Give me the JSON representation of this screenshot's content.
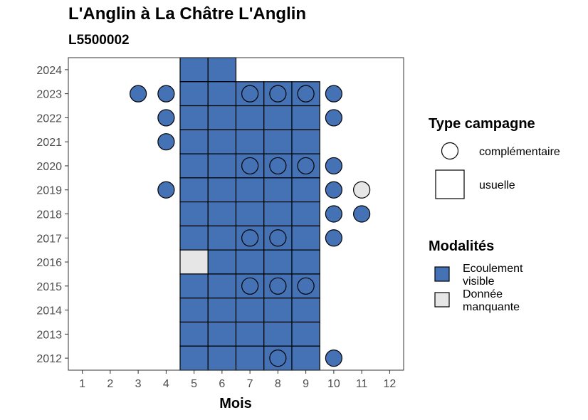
{
  "chart_data": {
    "type": "heatmap",
    "title": "L'Anglin à La Châtre L'Anglin",
    "subtitle": "L5500002",
    "xlabel": "Mois",
    "ylabel": "",
    "x_ticks": [
      1,
      2,
      3,
      4,
      5,
      6,
      7,
      8,
      9,
      10,
      11,
      12
    ],
    "y_ticks": [
      2012,
      2013,
      2014,
      2015,
      2016,
      2017,
      2018,
      2019,
      2020,
      2021,
      2022,
      2023,
      2024
    ],
    "xlim": [
      0.5,
      12.5
    ],
    "ylim": [
      2011.5,
      2024.5
    ],
    "colors": {
      "Ecoulement visible": "#4472b4",
      "Donnée manquante": "#e6e6e6"
    },
    "usuelle": [
      {
        "year": 2024,
        "month": 5,
        "modalite": "Ecoulement visible"
      },
      {
        "year": 2024,
        "month": 6,
        "modalite": "Ecoulement visible"
      },
      {
        "year": 2023,
        "month": 5,
        "modalite": "Ecoulement visible"
      },
      {
        "year": 2023,
        "month": 6,
        "modalite": "Ecoulement visible"
      },
      {
        "year": 2023,
        "month": 7,
        "modalite": "Ecoulement visible"
      },
      {
        "year": 2023,
        "month": 8,
        "modalite": "Ecoulement visible"
      },
      {
        "year": 2023,
        "month": 9,
        "modalite": "Ecoulement visible"
      },
      {
        "year": 2022,
        "month": 5,
        "modalite": "Ecoulement visible"
      },
      {
        "year": 2022,
        "month": 6,
        "modalite": "Ecoulement visible"
      },
      {
        "year": 2022,
        "month": 7,
        "modalite": "Ecoulement visible"
      },
      {
        "year": 2022,
        "month": 8,
        "modalite": "Ecoulement visible"
      },
      {
        "year": 2022,
        "month": 9,
        "modalite": "Ecoulement visible"
      },
      {
        "year": 2021,
        "month": 5,
        "modalite": "Ecoulement visible"
      },
      {
        "year": 2021,
        "month": 6,
        "modalite": "Ecoulement visible"
      },
      {
        "year": 2021,
        "month": 7,
        "modalite": "Ecoulement visible"
      },
      {
        "year": 2021,
        "month": 8,
        "modalite": "Ecoulement visible"
      },
      {
        "year": 2021,
        "month": 9,
        "modalite": "Ecoulement visible"
      },
      {
        "year": 2020,
        "month": 5,
        "modalite": "Ecoulement visible"
      },
      {
        "year": 2020,
        "month": 6,
        "modalite": "Ecoulement visible"
      },
      {
        "year": 2020,
        "month": 7,
        "modalite": "Ecoulement visible"
      },
      {
        "year": 2020,
        "month": 8,
        "modalite": "Ecoulement visible"
      },
      {
        "year": 2020,
        "month": 9,
        "modalite": "Ecoulement visible"
      },
      {
        "year": 2019,
        "month": 5,
        "modalite": "Ecoulement visible"
      },
      {
        "year": 2019,
        "month": 6,
        "modalite": "Ecoulement visible"
      },
      {
        "year": 2019,
        "month": 7,
        "modalite": "Ecoulement visible"
      },
      {
        "year": 2019,
        "month": 8,
        "modalite": "Ecoulement visible"
      },
      {
        "year": 2019,
        "month": 9,
        "modalite": "Ecoulement visible"
      },
      {
        "year": 2018,
        "month": 5,
        "modalite": "Ecoulement visible"
      },
      {
        "year": 2018,
        "month": 6,
        "modalite": "Ecoulement visible"
      },
      {
        "year": 2018,
        "month": 7,
        "modalite": "Ecoulement visible"
      },
      {
        "year": 2018,
        "month": 8,
        "modalite": "Ecoulement visible"
      },
      {
        "year": 2018,
        "month": 9,
        "modalite": "Ecoulement visible"
      },
      {
        "year": 2017,
        "month": 5,
        "modalite": "Ecoulement visible"
      },
      {
        "year": 2017,
        "month": 6,
        "modalite": "Ecoulement visible"
      },
      {
        "year": 2017,
        "month": 7,
        "modalite": "Ecoulement visible"
      },
      {
        "year": 2017,
        "month": 8,
        "modalite": "Ecoulement visible"
      },
      {
        "year": 2017,
        "month": 9,
        "modalite": "Ecoulement visible"
      },
      {
        "year": 2016,
        "month": 5,
        "modalite": "Donnée manquante"
      },
      {
        "year": 2016,
        "month": 6,
        "modalite": "Ecoulement visible"
      },
      {
        "year": 2016,
        "month": 7,
        "modalite": "Ecoulement visible"
      },
      {
        "year": 2016,
        "month": 8,
        "modalite": "Ecoulement visible"
      },
      {
        "year": 2016,
        "month": 9,
        "modalite": "Ecoulement visible"
      },
      {
        "year": 2015,
        "month": 5,
        "modalite": "Ecoulement visible"
      },
      {
        "year": 2015,
        "month": 6,
        "modalite": "Ecoulement visible"
      },
      {
        "year": 2015,
        "month": 7,
        "modalite": "Ecoulement visible"
      },
      {
        "year": 2015,
        "month": 8,
        "modalite": "Ecoulement visible"
      },
      {
        "year": 2015,
        "month": 9,
        "modalite": "Ecoulement visible"
      },
      {
        "year": 2014,
        "month": 5,
        "modalite": "Ecoulement visible"
      },
      {
        "year": 2014,
        "month": 6,
        "modalite": "Ecoulement visible"
      },
      {
        "year": 2014,
        "month": 7,
        "modalite": "Ecoulement visible"
      },
      {
        "year": 2014,
        "month": 8,
        "modalite": "Ecoulement visible"
      },
      {
        "year": 2014,
        "month": 9,
        "modalite": "Ecoulement visible"
      },
      {
        "year": 2013,
        "month": 5,
        "modalite": "Ecoulement visible"
      },
      {
        "year": 2013,
        "month": 6,
        "modalite": "Ecoulement visible"
      },
      {
        "year": 2013,
        "month": 7,
        "modalite": "Ecoulement visible"
      },
      {
        "year": 2013,
        "month": 8,
        "modalite": "Ecoulement visible"
      },
      {
        "year": 2013,
        "month": 9,
        "modalite": "Ecoulement visible"
      },
      {
        "year": 2012,
        "month": 5,
        "modalite": "Ecoulement visible"
      },
      {
        "year": 2012,
        "month": 6,
        "modalite": "Ecoulement visible"
      },
      {
        "year": 2012,
        "month": 7,
        "modalite": "Ecoulement visible"
      },
      {
        "year": 2012,
        "month": 8,
        "modalite": "Ecoulement visible"
      },
      {
        "year": 2012,
        "month": 9,
        "modalite": "Ecoulement visible"
      }
    ],
    "complementaire": [
      {
        "year": 2023,
        "month": 3,
        "modalite": "Ecoulement visible"
      },
      {
        "year": 2023,
        "month": 4,
        "modalite": "Ecoulement visible"
      },
      {
        "year": 2023,
        "month": 7,
        "modalite": "Ecoulement visible"
      },
      {
        "year": 2023,
        "month": 8,
        "modalite": "Ecoulement visible"
      },
      {
        "year": 2023,
        "month": 9,
        "modalite": "Ecoulement visible"
      },
      {
        "year": 2023,
        "month": 10,
        "modalite": "Ecoulement visible"
      },
      {
        "year": 2022,
        "month": 4,
        "modalite": "Ecoulement visible"
      },
      {
        "year": 2022,
        "month": 10,
        "modalite": "Ecoulement visible"
      },
      {
        "year": 2021,
        "month": 4,
        "modalite": "Ecoulement visible"
      },
      {
        "year": 2020,
        "month": 7,
        "modalite": "Ecoulement visible"
      },
      {
        "year": 2020,
        "month": 8,
        "modalite": "Ecoulement visible"
      },
      {
        "year": 2020,
        "month": 9,
        "modalite": "Ecoulement visible"
      },
      {
        "year": 2020,
        "month": 10,
        "modalite": "Ecoulement visible"
      },
      {
        "year": 2019,
        "month": 4,
        "modalite": "Ecoulement visible"
      },
      {
        "year": 2019,
        "month": 10,
        "modalite": "Ecoulement visible"
      },
      {
        "year": 2019,
        "month": 11,
        "modalite": "Donnée manquante"
      },
      {
        "year": 2018,
        "month": 10,
        "modalite": "Ecoulement visible"
      },
      {
        "year": 2018,
        "month": 11,
        "modalite": "Ecoulement visible"
      },
      {
        "year": 2017,
        "month": 7,
        "modalite": "Ecoulement visible"
      },
      {
        "year": 2017,
        "month": 8,
        "modalite": "Ecoulement visible"
      },
      {
        "year": 2017,
        "month": 10,
        "modalite": "Ecoulement visible"
      },
      {
        "year": 2015,
        "month": 7,
        "modalite": "Ecoulement visible"
      },
      {
        "year": 2015,
        "month": 8,
        "modalite": "Ecoulement visible"
      },
      {
        "year": 2015,
        "month": 9,
        "modalite": "Ecoulement visible"
      },
      {
        "year": 2012,
        "month": 8,
        "modalite": "Ecoulement visible"
      },
      {
        "year": 2012,
        "month": 10,
        "modalite": "Ecoulement visible"
      }
    ],
    "legend": {
      "placement": "right",
      "type_title": "Type campagne",
      "type_items": [
        {
          "shape": "circle",
          "label": "complémentaire"
        },
        {
          "shape": "square",
          "label": "usuelle"
        }
      ],
      "modalite_title": "Modalités",
      "modalite_items": [
        {
          "key": "Ecoulement visible",
          "label_lines": [
            "Ecoulement",
            "visible"
          ]
        },
        {
          "key": "Donnée manquante",
          "label_lines": [
            "Donnée",
            "manquante"
          ]
        }
      ]
    }
  }
}
